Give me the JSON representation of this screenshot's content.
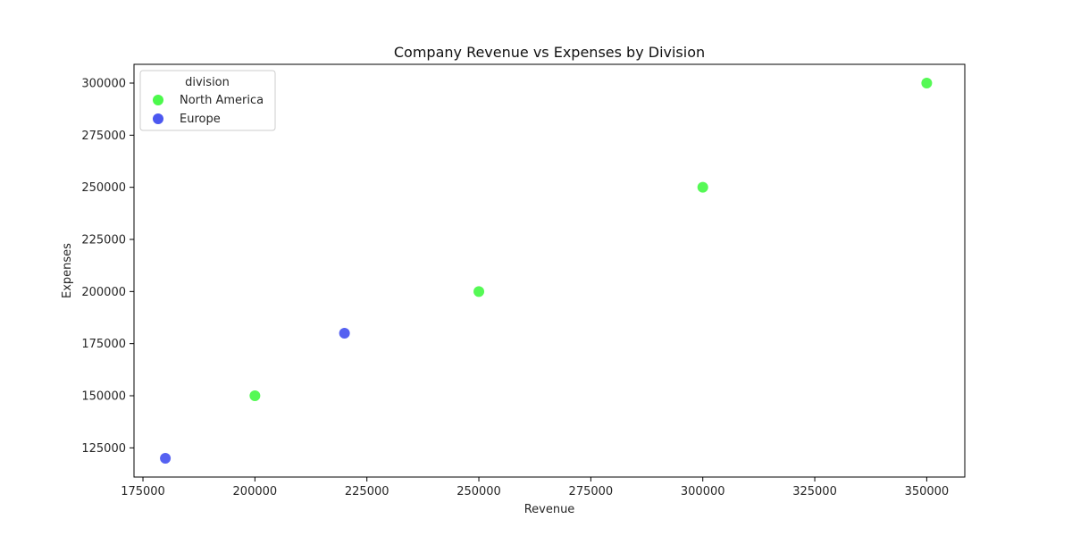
{
  "chart_data": {
    "type": "scatter",
    "title": "Company Revenue vs Expenses by Division",
    "xlabel": "Revenue",
    "ylabel": "Expenses",
    "xlim": [
      173000,
      358500
    ],
    "ylim": [
      111000,
      309000
    ],
    "xticks": [
      175000,
      200000,
      225000,
      250000,
      275000,
      300000,
      325000,
      350000
    ],
    "yticks": [
      125000,
      150000,
      175000,
      200000,
      225000,
      250000,
      275000,
      300000
    ],
    "legend": {
      "title": "division",
      "position": "top-left"
    },
    "series": [
      {
        "name": "North America",
        "color": "#4cf94c",
        "points": [
          {
            "x": 200000,
            "y": 150000
          },
          {
            "x": 250000,
            "y": 200000
          },
          {
            "x": 300000,
            "y": 250000
          },
          {
            "x": 350000,
            "y": 300000
          }
        ]
      },
      {
        "name": "Europe",
        "color": "#4c58f0",
        "points": [
          {
            "x": 180000,
            "y": 120000
          },
          {
            "x": 220000,
            "y": 180000
          }
        ]
      }
    ]
  }
}
